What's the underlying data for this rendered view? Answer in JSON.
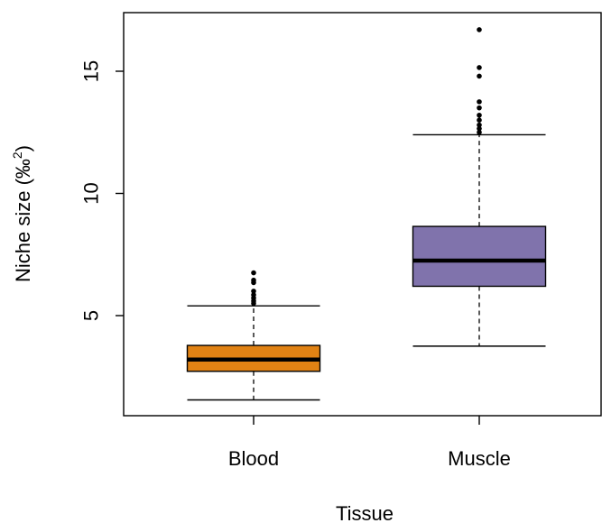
{
  "chart_data": {
    "type": "box",
    "xlabel": "Tissue",
    "ylabel_main": "Niche size (‰",
    "ylabel_sup": "2",
    "ylabel_close": ")",
    "yticks": [
      5,
      10,
      15
    ],
    "ytick_labels": [
      "5",
      "10",
      "15"
    ],
    "ylim": [
      0.9,
      17.3
    ],
    "grid": false,
    "categories": [
      "Blood",
      "Muscle"
    ],
    "boxes": [
      {
        "name": "Blood",
        "color": "#e08214",
        "whisker_low": 1.55,
        "q1": 2.72,
        "median": 3.2,
        "q3": 3.78,
        "whisker_high": 5.4,
        "outliers": [
          5.5,
          5.6,
          5.72,
          5.85,
          6.0,
          6.35,
          6.45,
          6.75
        ]
      },
      {
        "name": "Muscle",
        "color": "#8073ac",
        "whisker_low": 3.75,
        "q1": 6.2,
        "median": 7.25,
        "q3": 8.65,
        "whisker_high": 12.4,
        "outliers": [
          12.5,
          12.65,
          12.8,
          13.0,
          13.2,
          13.5,
          13.75,
          14.8,
          15.15,
          16.7
        ]
      }
    ]
  }
}
